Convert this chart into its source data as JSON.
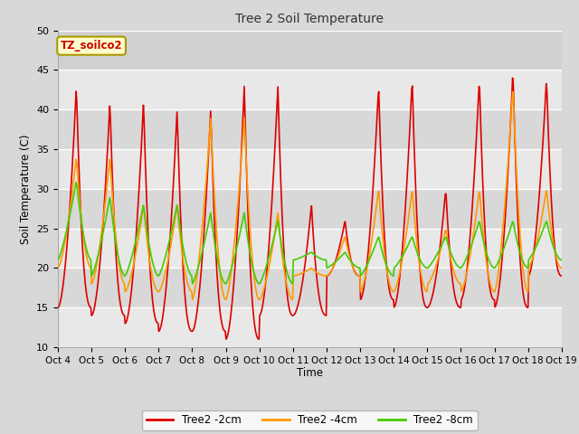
{
  "title": "Tree 2 Soil Temperature",
  "xlabel": "Time",
  "ylabel": "Soil Temperature (C)",
  "ylim": [
    10,
    50
  ],
  "annotation_text": "TZ_soilco2",
  "annotation_bg": "#ffffcc",
  "annotation_border": "#aa9900",
  "annotation_text_color": "#cc0000",
  "fig_bg_color": "#d8d8d8",
  "plot_bg_color": "#e8e8e8",
  "grid_color": "#ffffff",
  "x_labels": [
    "Oct 4",
    "Oct 5",
    "Oct 6",
    "Oct 7",
    "Oct 8",
    "Oct 9",
    "Oct 10",
    "Oct 11",
    "Oct 12",
    "Oct 13",
    "Oct 14",
    "Oct 15",
    "Oct 16",
    "Oct 17",
    "Oct 18",
    "Oct 19"
  ],
  "legend": [
    {
      "label": "Tree2 -2cm",
      "color": "#dd0000"
    },
    {
      "label": "Tree2 -4cm",
      "color": "#ff9900"
    },
    {
      "label": "Tree2 -8cm",
      "color": "#44cc00"
    }
  ],
  "yticks": [
    10,
    15,
    20,
    25,
    30,
    35,
    40,
    45,
    50
  ],
  "top_band_color": "#d0d0d0",
  "mid_band_color": "#e0e0e0"
}
